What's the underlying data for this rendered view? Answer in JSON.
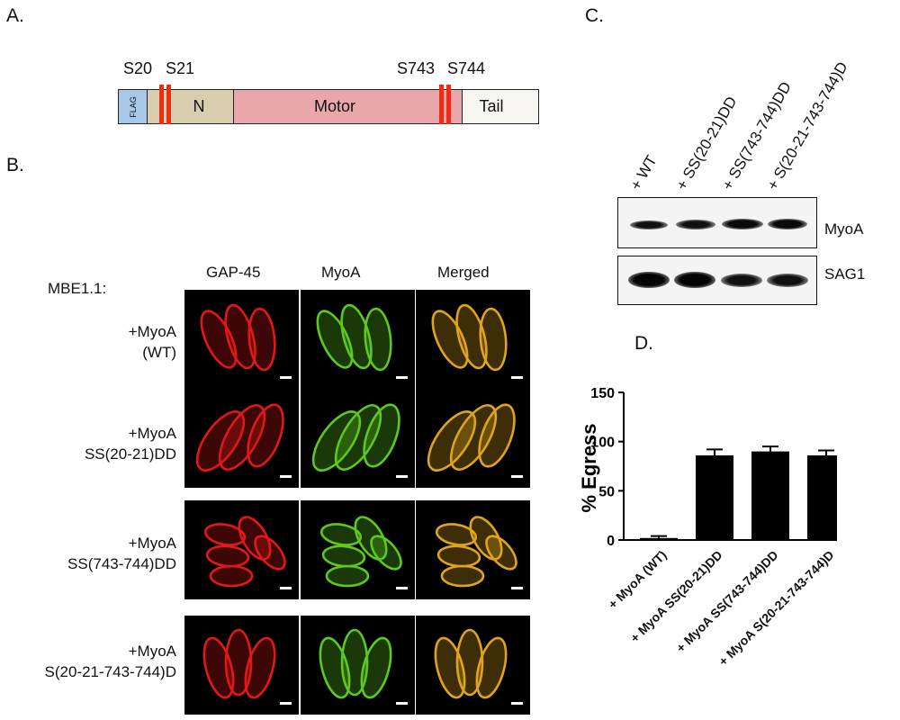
{
  "panels": {
    "a": "A.",
    "b": "B.",
    "c": "C.",
    "d": "D."
  },
  "schematic": {
    "domains": {
      "flag": "FLAG",
      "n": "N",
      "motor": "Motor",
      "tail": "Tail"
    },
    "sites": [
      "S20",
      "S21",
      "S743",
      "S744"
    ],
    "colors": {
      "flag": "#a9c8e8",
      "n": "#d8ceae",
      "motor": "#e9a7a9",
      "tail": "#f7f5f2",
      "site": "#f12a12"
    }
  },
  "microscopy": {
    "strain": "MBE1.1:",
    "channels": [
      "GAP-45",
      "MyoA",
      "Merged"
    ],
    "rows": [
      {
        "line1": "+MyoA",
        "line2": "(WT)"
      },
      {
        "line1": "+MyoA",
        "line2": "SS(20-21)DD"
      },
      {
        "line1": "+MyoA",
        "line2": "SS(743-744)DD"
      },
      {
        "line1": "+MyoA",
        "line2": "S(20-21-743-744)D"
      }
    ],
    "colors": {
      "gap45": "#e01818",
      "myoa": "#5ec81e",
      "merged": "#e0a41c"
    }
  },
  "blot": {
    "lanes": [
      "+ WT",
      "+ SS(20-21)DD",
      "+ SS(743-744)DD",
      "+ S(20-21-743-744)D"
    ],
    "rows": [
      "MyoA",
      "SAG1"
    ]
  },
  "chart_data": {
    "type": "bar",
    "ylabel": "% Egress",
    "ylim": [
      0,
      150
    ],
    "yticks": [
      0,
      50,
      100,
      150
    ],
    "categories": [
      "+ MyoA (WT)",
      "+ MyoA SS(20-21)DD",
      "+ MyoA SS(743-744)DD",
      "+ MyoA S(20-21-743-744)D"
    ],
    "values": [
      2,
      86,
      90,
      86
    ],
    "errors": [
      2,
      6,
      5,
      5
    ],
    "bar_color": "#000000"
  }
}
